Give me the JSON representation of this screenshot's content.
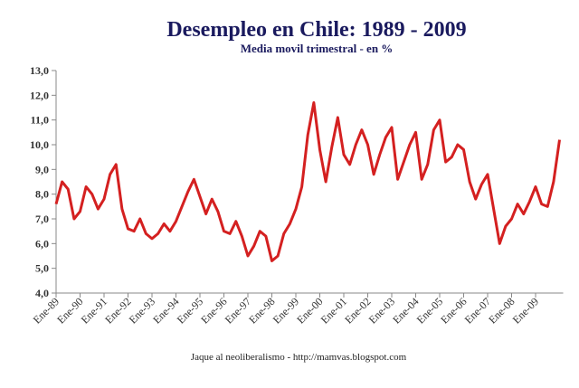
{
  "chart_data": {
    "type": "line",
    "title": "Desempleo en Chile: 1989 - 2009",
    "subtitle": "Media movil trimestral - en %",
    "source": "Jaque al neoliberalismo - http://mamvas.blogspot.com",
    "categories": [
      "Ene-89",
      null,
      null,
      null,
      "Ene-90",
      null,
      null,
      null,
      "Ene-91",
      null,
      null,
      null,
      "Ene-92",
      null,
      null,
      null,
      "Ene-93",
      null,
      null,
      null,
      "Ene-94",
      null,
      null,
      null,
      "Ene-95",
      null,
      null,
      null,
      "Ene-96",
      null,
      null,
      null,
      "Ene-97",
      null,
      null,
      null,
      "Ene-98",
      null,
      null,
      null,
      "Ene-99",
      null,
      null,
      null,
      "Ene-00",
      null,
      null,
      null,
      "Ene-01",
      null,
      null,
      null,
      "Ene-02",
      null,
      null,
      null,
      "Ene-03",
      null,
      null,
      null,
      "Ene-04",
      null,
      null,
      null,
      "Ene-05",
      null,
      null,
      null,
      "Ene-06",
      null,
      null,
      null,
      "Ene-07",
      null,
      null,
      null,
      "Ene-08",
      null,
      null,
      null,
      "Ene-09",
      null,
      null,
      null,
      null
    ],
    "series": [
      {
        "color": "#d42020",
        "values": [
          7.6,
          8.5,
          8.2,
          7.0,
          7.3,
          8.3,
          8.0,
          7.4,
          7.8,
          8.8,
          9.2,
          7.4,
          6.6,
          6.5,
          7.0,
          6.4,
          6.2,
          6.4,
          6.8,
          6.5,
          6.9,
          7.5,
          8.1,
          8.6,
          7.9,
          7.2,
          7.8,
          7.3,
          6.5,
          6.4,
          6.9,
          6.3,
          5.5,
          5.9,
          6.5,
          6.3,
          5.3,
          5.5,
          6.4,
          6.8,
          7.4,
          8.3,
          10.4,
          11.7,
          9.8,
          8.5,
          9.9,
          11.1,
          9.6,
          9.2,
          10.0,
          10.6,
          10.0,
          8.8,
          9.6,
          10.3,
          10.7,
          8.6,
          9.3,
          10.0,
          10.5,
          8.6,
          9.2,
          10.6,
          11.0,
          9.3,
          9.5,
          10.0,
          9.8,
          8.5,
          7.8,
          8.4,
          8.8,
          7.4,
          6.0,
          6.7,
          7.0,
          7.6,
          7.2,
          7.7,
          8.3,
          7.6,
          7.5,
          8.5,
          10.2
        ]
      }
    ],
    "ylim": [
      4,
      13
    ],
    "yticks": [
      {
        "value": 4,
        "label": "4,0"
      },
      {
        "value": 5,
        "label": "5,0"
      },
      {
        "value": 6,
        "label": "6,0"
      },
      {
        "value": 7,
        "label": "7,0"
      },
      {
        "value": 8,
        "label": "8,0"
      },
      {
        "value": 9,
        "label": "9,0"
      },
      {
        "value": 10,
        "label": "10,0"
      },
      {
        "value": 11,
        "label": "11,0"
      },
      {
        "value": 12,
        "label": "12,0"
      },
      {
        "value": 13,
        "label": "13,0"
      }
    ],
    "grid": false
  }
}
